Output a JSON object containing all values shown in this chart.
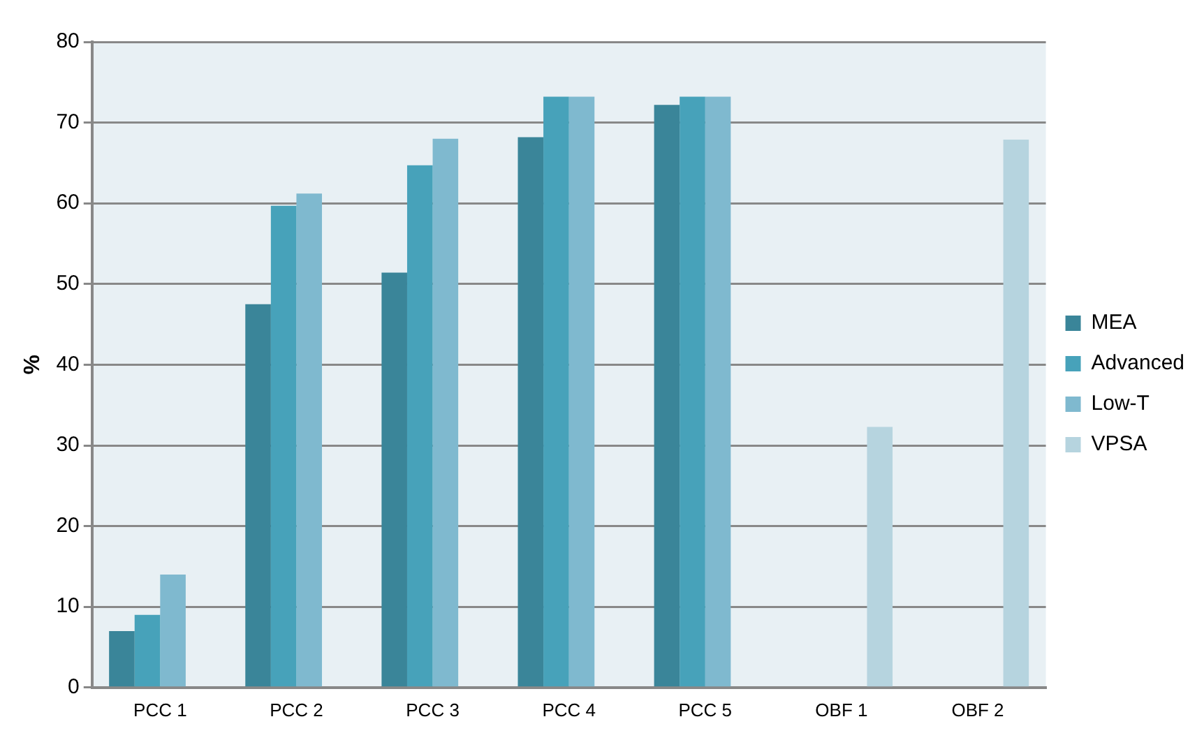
{
  "chart_data": {
    "type": "bar",
    "ylabel": "%",
    "categories": [
      "PCC 1",
      "PCC 2",
      "PCC 3",
      "PCC 4",
      "PCC 5",
      "OBF 1",
      "OBF 2"
    ],
    "series": [
      {
        "name": "MEA",
        "color": "#3a8599",
        "values": [
          7,
          47.5,
          51.4,
          68.2,
          72.2,
          null,
          null
        ]
      },
      {
        "name": "Advanced",
        "color": "#47a2ba",
        "values": [
          9,
          59.7,
          64.7,
          73.2,
          73.2,
          null,
          null
        ]
      },
      {
        "name": "Low-T",
        "color": "#7fb9cf",
        "values": [
          14,
          61.2,
          68,
          73.2,
          73.2,
          null,
          null
        ]
      },
      {
        "name": "VPSA",
        "color": "#b6d4df",
        "values": [
          null,
          null,
          null,
          null,
          null,
          32.3,
          67.9
        ]
      }
    ],
    "ylim": [
      0,
      80
    ],
    "yticks": [
      0,
      10,
      20,
      30,
      40,
      50,
      60,
      70,
      80
    ],
    "grid": "y",
    "legend": "right"
  }
}
